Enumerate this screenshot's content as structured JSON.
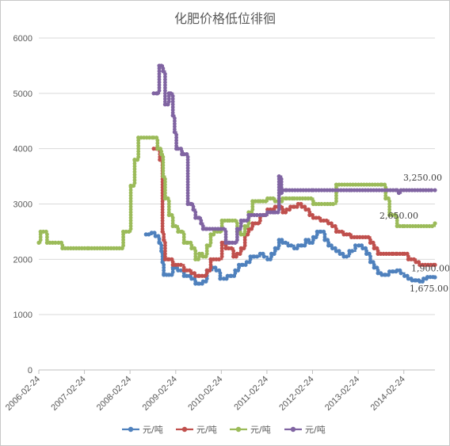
{
  "chart_data": {
    "type": "line",
    "title": "化肥价格低位徘徊",
    "xlabel": "",
    "ylabel": "",
    "ylim": [
      0,
      6000
    ],
    "yticks": [
      0,
      1000,
      2000,
      3000,
      4000,
      5000,
      6000
    ],
    "xticks": [
      "2006-02-24",
      "2007-02-24",
      "2008-02-24",
      "2009-02-24",
      "2010-02-24",
      "2011-02-24",
      "2012-02-24",
      "2013-02-24",
      "2014-02-24"
    ],
    "x_start": "2006-02-24",
    "x_end": "2014-10-31",
    "grid": "horizontal",
    "legend_position": "bottom",
    "colors": [
      "#4f81bd",
      "#c0504d",
      "#9bbb59",
      "#8064a2"
    ],
    "series": [
      {
        "name": "元/吨",
        "x": [
          "2008-07-01",
          "2008-08-15",
          "2008-09-15",
          "2008-10-15",
          "2008-11-01",
          "2008-11-10",
          "2008-11-20",
          "2009-01-01",
          "2009-02-01",
          "2009-03-15",
          "2009-05-01",
          "2009-07-01",
          "2009-08-01",
          "2009-09-01",
          "2009-10-01",
          "2009-11-01",
          "2009-12-15",
          "2010-01-15",
          "2010-02-15",
          "2010-03-15",
          "2010-04-15",
          "2010-05-15",
          "2010-06-15",
          "2010-07-15",
          "2010-08-15",
          "2010-09-15",
          "2010-10-15",
          "2010-11-15",
          "2011-01-01",
          "2011-02-01",
          "2011-03-01",
          "2011-04-01",
          "2011-05-01",
          "2011-06-01",
          "2011-07-01",
          "2011-08-15",
          "2011-10-01",
          "2011-11-01",
          "2011-12-01",
          "2012-01-01",
          "2012-02-01",
          "2012-03-01",
          "2012-04-01",
          "2012-05-01",
          "2012-06-01",
          "2012-07-01",
          "2012-08-01",
          "2012-09-01",
          "2012-10-01",
          "2012-11-01",
          "2012-12-15",
          "2013-02-01",
          "2013-03-01",
          "2013-04-01",
          "2013-05-01",
          "2013-06-01",
          "2013-07-01",
          "2013-08-01",
          "2013-09-01",
          "2013-10-01",
          "2013-11-01",
          "2013-12-01",
          "2014-01-01",
          "2014-02-01",
          "2014-03-01",
          "2014-04-01",
          "2014-05-01",
          "2014-06-01",
          "2014-07-01",
          "2014-08-01",
          "2014-09-01",
          "2014-10-31"
        ],
        "values": [
          2450,
          2480,
          2420,
          2300,
          2150,
          1950,
          1720,
          1720,
          1850,
          1800,
          1700,
          1650,
          1560,
          1560,
          1600,
          1800,
          1850,
          1800,
          1650,
          1650,
          1700,
          1700,
          1800,
          1900,
          1900,
          1950,
          2050,
          2050,
          2100,
          2050,
          2000,
          2100,
          2200,
          2350,
          2300,
          2250,
          2200,
          2250,
          2250,
          2350,
          2300,
          2400,
          2500,
          2500,
          2350,
          2250,
          2200,
          2150,
          2100,
          2050,
          2150,
          2250,
          2250,
          2200,
          2100,
          1950,
          1850,
          1750,
          1720,
          1720,
          1780,
          1780,
          1800,
          1750,
          1700,
          1650,
          1620,
          1620,
          1600,
          1650,
          1680,
          1675
        ]
      },
      {
        "name": "元/吨",
        "x": [
          "2008-09-01",
          "2008-10-01",
          "2008-10-20",
          "2008-11-10",
          "2008-11-20",
          "2008-12-01",
          "2009-01-01",
          "2009-02-01",
          "2009-03-15",
          "2009-05-01",
          "2009-07-01",
          "2009-08-01",
          "2009-09-01",
          "2009-11-01",
          "2009-12-01",
          "2010-03-01",
          "2010-04-01",
          "2010-06-01",
          "2010-07-01",
          "2010-08-01",
          "2010-09-01",
          "2010-10-01",
          "2010-11-01",
          "2011-01-01",
          "2011-02-01",
          "2011-03-01",
          "2011-05-01",
          "2011-07-01",
          "2011-08-01",
          "2011-09-01",
          "2011-10-01",
          "2011-11-01",
          "2011-12-01",
          "2012-01-01",
          "2012-02-01",
          "2012-03-01",
          "2012-05-01",
          "2012-07-01",
          "2012-08-01",
          "2012-09-01",
          "2012-11-01",
          "2013-01-01",
          "2013-04-01",
          "2013-06-01",
          "2013-07-01",
          "2013-08-01",
          "2013-12-01",
          "2014-01-01",
          "2014-03-01",
          "2014-04-01",
          "2014-06-01",
          "2014-07-01",
          "2014-10-31"
        ],
        "values": [
          4000,
          4000,
          3800,
          2500,
          2350,
          2000,
          2000,
          1900,
          1900,
          1800,
          1750,
          1700,
          1700,
          1800,
          2000,
          2300,
          2200,
          2050,
          2100,
          2200,
          2450,
          2550,
          2650,
          2800,
          2800,
          2900,
          2950,
          2850,
          2900,
          2950,
          2950,
          3000,
          2950,
          2900,
          2800,
          2750,
          2700,
          2650,
          2600,
          2500,
          2450,
          2400,
          2400,
          2300,
          2200,
          2100,
          2100,
          2100,
          2100,
          2000,
          1950,
          1900,
          1900
        ]
      },
      {
        "name": "元/吨",
        "x": [
          "2006-02-24",
          "2006-03-10",
          "2006-05-01",
          "2006-08-01",
          "2006-09-01",
          "2007-04-01",
          "2007-12-01",
          "2008-01-01",
          "2008-02-15",
          "2008-03-01",
          "2008-04-01",
          "2008-05-01",
          "2008-09-01",
          "2008-10-01",
          "2008-11-01",
          "2008-11-15",
          "2008-12-01",
          "2009-01-01",
          "2009-02-01",
          "2009-03-15",
          "2009-04-15",
          "2009-05-01",
          "2009-06-01",
          "2009-07-01",
          "2009-08-01",
          "2009-09-01",
          "2009-10-01",
          "2009-11-01",
          "2009-12-01",
          "2010-01-01",
          "2010-03-01",
          "2010-05-01",
          "2010-07-01",
          "2010-08-01",
          "2010-09-01",
          "2010-10-01",
          "2010-11-01",
          "2011-01-01",
          "2011-03-01",
          "2011-05-01",
          "2011-06-01",
          "2011-07-01",
          "2011-08-01",
          "2011-10-01",
          "2012-03-01",
          "2012-06-01",
          "2012-09-01",
          "2013-09-01",
          "2013-10-01",
          "2013-11-01",
          "2014-01-01",
          "2014-03-01",
          "2014-10-31"
        ],
        "values": [
          2300,
          2500,
          2300,
          2300,
          2200,
          2200,
          2200,
          2500,
          2500,
          3330,
          3800,
          4200,
          4200,
          4000,
          3900,
          3500,
          3100,
          2800,
          2600,
          2500,
          2500,
          2300,
          2300,
          2200,
          2000,
          2100,
          2050,
          2250,
          2450,
          2500,
          2700,
          2700,
          2500,
          2450,
          2600,
          2850,
          3050,
          3050,
          3100,
          3050,
          3050,
          3100,
          3100,
          3100,
          3000,
          3000,
          3350,
          3350,
          3100,
          2800,
          2600,
          2600,
          2650
        ]
      },
      {
        "name": "元/吨",
        "x": [
          "2008-09-01",
          "2008-10-01",
          "2008-10-15",
          "2008-11-01",
          "2008-11-15",
          "2008-12-01",
          "2009-01-01",
          "2009-01-15",
          "2009-02-01",
          "2009-02-15",
          "2009-03-01",
          "2009-03-15",
          "2009-04-15",
          "2009-05-01",
          "2009-06-01",
          "2009-07-01",
          "2009-07-15",
          "2009-08-01",
          "2009-09-01",
          "2009-09-15",
          "2009-10-01",
          "2009-11-01",
          "2010-04-01",
          "2010-05-01",
          "2010-07-01",
          "2010-08-01",
          "2010-10-01",
          "2011-01-01",
          "2011-03-01",
          "2011-05-01",
          "2011-06-01",
          "2011-06-20",
          "2011-07-01",
          "2011-08-01",
          "2012-03-01",
          "2013-01-01",
          "2014-01-01",
          "2014-01-15",
          "2014-02-01",
          "2014-10-31"
        ],
        "values": [
          5000,
          5000,
          5500,
          5500,
          5400,
          4800,
          5000,
          5000,
          4600,
          4300,
          4000,
          4000,
          3900,
          3900,
          3000,
          3000,
          2900,
          2750,
          2750,
          2650,
          2550,
          2550,
          2300,
          2300,
          2550,
          2700,
          2800,
          2800,
          2850,
          2850,
          3500,
          3200,
          3250,
          3250,
          3250,
          3250,
          3250,
          3200,
          3250,
          3250
        ]
      }
    ],
    "end_labels": [
      "1,675.00",
      "1,900.00",
      "2,650.00",
      "3,250.00"
    ]
  }
}
